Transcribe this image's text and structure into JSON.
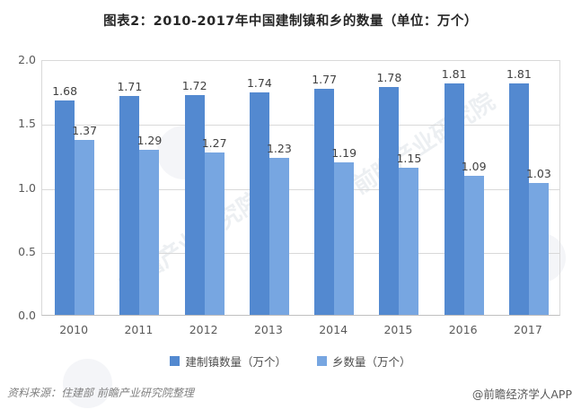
{
  "title": "图表2：2010-2017年中国建制镇和乡的数量（单位：万个）",
  "chart_data": {
    "type": "bar",
    "categories": [
      "2010",
      "2011",
      "2012",
      "2013",
      "2014",
      "2015",
      "2016",
      "2017"
    ],
    "series": [
      {
        "name": "建制镇数量（万个）",
        "color": "#5389D0",
        "values": [
          1.68,
          1.71,
          1.72,
          1.74,
          1.77,
          1.78,
          1.81,
          1.81
        ]
      },
      {
        "name": "乡数量（万个）",
        "color": "#77A6E1",
        "values": [
          1.37,
          1.29,
          1.27,
          1.23,
          1.19,
          1.15,
          1.09,
          1.03
        ]
      }
    ],
    "title": "图表2：2010-2017年中国建制镇和乡的数量（单位：万个）",
    "xlabel": "",
    "ylabel": "",
    "ylim": [
      0,
      2.0
    ],
    "y_ticks": [
      "2.0",
      "1.5",
      "1.0",
      "0.5",
      "0.0"
    ],
    "grid": true,
    "legend_position": "bottom",
    "value_labels": true
  },
  "footer": {
    "source": "资料来源：住建部  前瞻产业研究院整理",
    "credit": "@前瞻经济学人APP"
  },
  "watermark": {
    "text": "前瞻产业研究院"
  }
}
